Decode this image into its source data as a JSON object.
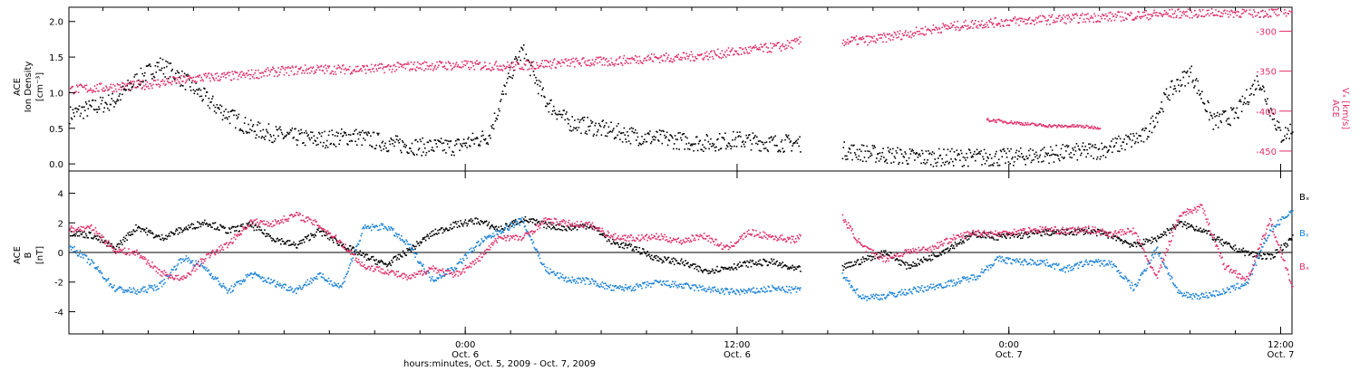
{
  "chart_data": [
    {
      "type": "scatter",
      "panel": "top",
      "ylabel_lines": [
        "ACE",
        "Ion Density",
        "[cm⁻³]"
      ],
      "ylim": [
        -0.1,
        2.2
      ],
      "y_ticks": [
        "0.0",
        "0.5",
        "1.0",
        "1.5",
        "2.0"
      ],
      "y_tick_values": [
        0.0,
        0.5,
        1.0,
        1.5,
        2.0
      ],
      "y2label_lines": [
        "ACE",
        "Vₓ [km/s]"
      ],
      "y2lim": [
        -270,
        -475
      ],
      "y2_ticks": [
        "-300",
        "-350",
        "-400",
        "-450"
      ],
      "y2_tick_values": [
        -300,
        -350,
        -400,
        -450
      ],
      "x_range_hours": [
        -17.5,
        36.5
      ],
      "data_end_hours": 17.0,
      "gap_hours": [
        14.8,
        16.6
      ],
      "series": [
        {
          "color": "#000000",
          "axis": "left",
          "x": [
            -17.5,
            -16.5,
            -15.5,
            -14.5,
            -13.5,
            -12.5,
            -11,
            -9.5,
            -8,
            -6.5,
            -5,
            -3.5,
            -2,
            -0.5,
            1,
            2,
            2.5,
            3.5,
            4.5,
            6,
            7.5,
            9,
            10.5,
            12,
            13.5,
            14.8,
            16.6,
            18,
            20,
            22,
            24,
            26,
            28,
            30,
            31,
            32,
            33,
            34,
            35,
            36,
            36.5
          ],
          "y": [
            0.7,
            0.8,
            0.9,
            1.2,
            1.4,
            1.2,
            0.8,
            0.5,
            0.4,
            0.35,
            0.4,
            0.3,
            0.25,
            0.25,
            0.4,
            1.3,
            1.6,
            0.9,
            0.6,
            0.5,
            0.4,
            0.35,
            0.3,
            0.35,
            0.3,
            0.3,
            0.2,
            0.15,
            0.1,
            0.1,
            0.1,
            0.15,
            0.2,
            0.4,
            1.0,
            1.3,
            0.6,
            0.7,
            1.2,
            0.4,
            0.5
          ]
        },
        {
          "color": "#e0306a",
          "axis": "right",
          "x": [
            -17.5,
            -16,
            -14.5,
            -13,
            -11.5,
            -10,
            -8.5,
            -7,
            -5.5,
            -4,
            -2.5,
            -1,
            0.5,
            2,
            3.5,
            5,
            6.5,
            8,
            9.5,
            11,
            12.5,
            14,
            14.8,
            16.6,
            18,
            19.5,
            21,
            22.5,
            24,
            25.5,
            27,
            28.5,
            30,
            31.5,
            33,
            34.5,
            36,
            36.5
          ],
          "y": [
            -372,
            -370,
            -367,
            -362,
            -357,
            -355,
            -350,
            -347,
            -347,
            -346,
            -343,
            -342,
            -342,
            -343,
            -340,
            -338,
            -337,
            -333,
            -332,
            -328,
            -323,
            -318,
            -312,
            -312,
            -310,
            -302,
            -295,
            -290,
            -287,
            -285,
            -283,
            -281,
            -279,
            -277,
            -276,
            -276,
            -276,
            -272
          ]
        },
        {
          "color": "#e0306a",
          "axis": "right",
          "x": [
            23.0,
            24.0,
            25.0,
            26.0,
            27.0,
            28.0
          ],
          "y": [
            -410,
            -413,
            -416,
            -418,
            -418,
            -420
          ]
        }
      ]
    },
    {
      "type": "scatter",
      "panel": "bottom",
      "ylabel_lines": [
        "ACE",
        "B",
        "[nT]"
      ],
      "ylim": [
        -5.5,
        5.5
      ],
      "y_ticks": [
        "-4",
        "-2",
        "0",
        "2",
        "4"
      ],
      "y_tick_values": [
        -4,
        -2,
        0,
        2,
        4
      ],
      "x_range_hours": [
        -17.5,
        36.5
      ],
      "data_end_hours": 17.0,
      "gap_hours": [
        14.8,
        16.6
      ],
      "series": [
        {
          "name": "Bₓ",
          "color": "#000000",
          "x": [
            -17.5,
            -16.5,
            -15.5,
            -14.5,
            -13.5,
            -12.5,
            -11.5,
            -10.5,
            -9.5,
            -8.5,
            -7.5,
            -6.5,
            -5.5,
            -4.5,
            -3.5,
            -2.5,
            -1.5,
            -0.5,
            0.5,
            1.5,
            2.5,
            3.5,
            4.5,
            5.5,
            6.5,
            7.5,
            8.5,
            9.5,
            10.5,
            11.5,
            12.5,
            13.5,
            14.5,
            16.6,
            17.5,
            18.5,
            19.5,
            20.5,
            21.5,
            22.5,
            23.5,
            24.5,
            25.5,
            26.5,
            27.5,
            28.5,
            29.5,
            30.5,
            31.5,
            32.5,
            33.5,
            34.5,
            35.5,
            36.5
          ],
          "y": [
            1.4,
            1.2,
            0.3,
            1.8,
            1.0,
            1.6,
            2.1,
            1.5,
            1.9,
            1.0,
            0.5,
            1.5,
            0.6,
            -0.2,
            -0.8,
            0.2,
            1.3,
            1.9,
            2.2,
            1.6,
            2.3,
            1.9,
            1.7,
            1.9,
            0.7,
            0.3,
            -0.4,
            -0.6,
            -1.2,
            -1.0,
            -0.7,
            -0.6,
            -1.1,
            -1.0,
            -0.5,
            0.1,
            -0.9,
            -0.3,
            0.5,
            1.3,
            1.1,
            1.2,
            1.4,
            1.4,
            1.5,
            1.2,
            0.5,
            1.0,
            2.0,
            1.6,
            0.6,
            0.0,
            -0.3,
            1.0
          ]
        },
        {
          "name": "Bᵧ",
          "color": "#1b82d6",
          "x": [
            -17.5,
            -16.5,
            -15.5,
            -14.5,
            -13.5,
            -12.5,
            -11.5,
            -10.5,
            -9.5,
            -8.5,
            -7.5,
            -6.5,
            -5.5,
            -4.5,
            -3.5,
            -2.5,
            -1.5,
            -0.5,
            0.5,
            1.5,
            2.5,
            3.5,
            4.5,
            5.5,
            6.5,
            7.5,
            8.5,
            9.5,
            10.5,
            11.5,
            12.5,
            13.5,
            14.5,
            16.6,
            17.5,
            18.5,
            19.5,
            20.5,
            21.5,
            22.5,
            23.5,
            24.5,
            25.5,
            26.5,
            27.5,
            28.5,
            29.5,
            30.5,
            31.5,
            32.5,
            33.5,
            34.5,
            35.5,
            36.5
          ],
          "y": [
            0.5,
            -0.7,
            -2.4,
            -2.6,
            -2.2,
            -0.3,
            -1.0,
            -2.6,
            -1.4,
            -2.0,
            -2.5,
            -1.5,
            -2.3,
            1.7,
            1.8,
            0.5,
            -1.8,
            -1.0,
            0.6,
            1.5,
            2.2,
            -1.1,
            -1.8,
            -1.9,
            -2.4,
            -2.3,
            -2.0,
            -2.2,
            -2.4,
            -2.6,
            -2.6,
            -2.4,
            -2.5,
            -1.5,
            -3.0,
            -2.9,
            -2.6,
            -2.3,
            -2.0,
            -1.6,
            -0.4,
            -0.6,
            -0.6,
            -1.1,
            -0.6,
            -0.7,
            -2.4,
            0.3,
            -2.8,
            -2.9,
            -2.6,
            -2.0,
            1.5,
            2.9
          ]
        },
        {
          "name": "Bₓ",
          "color": "#e0306a",
          "x": [
            -17.5,
            -16.5,
            -15.5,
            -14.5,
            -13.5,
            -12.5,
            -11.5,
            -10.5,
            -9.5,
            -8.5,
            -7.5,
            -6.5,
            -5.5,
            -4.5,
            -3.5,
            -2.5,
            -1.5,
            -0.5,
            0.5,
            1.5,
            2.5,
            3.5,
            4.5,
            5.5,
            6.5,
            7.5,
            8.5,
            9.5,
            10.5,
            11.5,
            12.5,
            13.5,
            14.5,
            16.6,
            17.5,
            18.5,
            19.5,
            20.5,
            21.5,
            22.5,
            23.5,
            24.5,
            25.5,
            26.5,
            27.5,
            28.5,
            29.5,
            30.5,
            31.5,
            32.5,
            33.5,
            34.5,
            35.5,
            36.5
          ],
          "y": [
            1.6,
            1.7,
            0.2,
            0.0,
            -1.3,
            -1.8,
            -0.3,
            0.6,
            2.1,
            2.0,
            2.6,
            1.9,
            0.7,
            -0.9,
            -1.2,
            -1.7,
            -1.0,
            -1.5,
            -0.5,
            1.1,
            1.0,
            2.2,
            2.0,
            1.9,
            1.1,
            1.0,
            1.1,
            0.8,
            1.2,
            0.3,
            1.4,
            1.1,
            0.9,
            2.5,
            0.4,
            -0.4,
            0.1,
            0.3,
            1.0,
            1.4,
            1.3,
            1.5,
            1.6,
            1.5,
            1.6,
            1.3,
            1.5,
            -1.7,
            2.6,
            3.1,
            -0.9,
            -1.8,
            2.2,
            -2.3
          ]
        }
      ]
    }
  ],
  "x_axis": {
    "ticks": [
      {
        "hours": 0,
        "line1": "0:00",
        "line2": "Oct. 6"
      },
      {
        "hours": 12,
        "line1": "12:00",
        "line2": "Oct. 6"
      },
      {
        "hours": 24,
        "line1": "0:00",
        "line2": "Oct. 7"
      },
      {
        "hours": 36,
        "line1": "12:00",
        "line2": "Oct. 7"
      }
    ],
    "title": "hours:minutes, Oct.  5, 2009 - Oct.  7, 2009"
  },
  "legend": [
    "Bₓ",
    "Bᵧ",
    "Bₓ"
  ],
  "colors": {
    "black": "#000000",
    "blue": "#1b82d6",
    "red": "#e0306a"
  }
}
